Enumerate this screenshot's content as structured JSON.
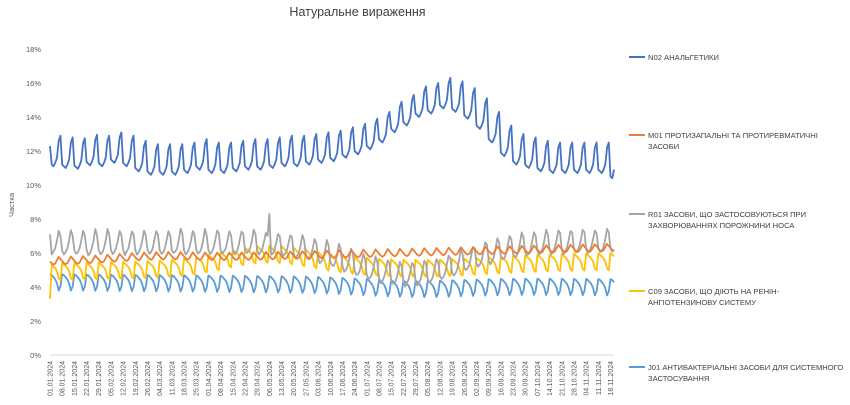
{
  "chart_data": {
    "type": "line",
    "title": "Натуральне вираження",
    "xlabel": "",
    "ylabel": "Частка",
    "ylim": [
      0,
      18
    ],
    "y_ticks": [
      "0%",
      "2%",
      "4%",
      "6%",
      "8%",
      "10%",
      "12%",
      "14%",
      "16%",
      "18%"
    ],
    "x_tick_labels": [
      "01.01.2024",
      "08.01.2024",
      "15.01.2024",
      "22.01.2024",
      "29.01.2024",
      "05.02.2024",
      "12.02.2024",
      "19.02.2024",
      "26.02.2024",
      "04.03.2024",
      "11.03.2024",
      "18.03.2024",
      "25.03.2024",
      "01.04.2024",
      "08.04.2024",
      "15.04.2024",
      "22.04.2024",
      "29.04.2024",
      "06.05.2024",
      "13.05.2024",
      "20.05.2024",
      "27.05.2024",
      "03.06.2024",
      "10.06.2024",
      "17.06.2024",
      "24.06.2024",
      "01.07.2024",
      "08.07.2024",
      "15.07.2024",
      "22.07.2024",
      "29.07.2024",
      "05.08.2024",
      "12.08.2024",
      "19.08.2024",
      "26.08.2024",
      "02.09.2024",
      "09.09.2024",
      "16.09.2024",
      "23.09.2024",
      "30.09.2024",
      "07.10.2024",
      "14.10.2024",
      "21.10.2024",
      "28.10.2024",
      "04.11.2024",
      "11.11.2024",
      "18.11.2024"
    ],
    "x_range": [
      "01.01.2024",
      "20.11.2024"
    ],
    "gridlines": false,
    "legend_position": "right",
    "series": [
      {
        "name": "N02 АНАЛЬГЕТИКИ",
        "color": "#4472c4",
        "weekday_base": [
          11.3,
          11.2,
          11.1,
          11.3,
          11.6,
          12.6,
          12.9
        ],
        "weekly_level": [
          1.0,
          0.9,
          0.85,
          1.05,
          1.0,
          1.2,
          1.0,
          0.7,
          0.5,
          0.5,
          0.5,
          0.6,
          0.8,
          0.6,
          0.6,
          0.7,
          0.8,
          0.8,
          0.9,
          1.0,
          1.0,
          1.1,
          1.2,
          1.3,
          1.5,
          1.7,
          2.0,
          2.4,
          3.0,
          3.4,
          3.9,
          4.1,
          4.4,
          4.2,
          3.8,
          3.2,
          2.4,
          1.6,
          1.1,
          0.9,
          0.7,
          0.6,
          0.6,
          0.6,
          0.6,
          0.6,
          0.2
        ],
        "first_value": 12.3,
        "last_value": 10.9
      },
      {
        "name": "M01 ПРОТИЗАПАЛЬНІ ТА ПРОТИРЕВМАТИЧНІ ЗАСОБИ",
        "color": "#ed7d31",
        "start": 5.5,
        "end": 6.3,
        "weekly_amplitude": 0.25
      },
      {
        "name": "R01 ЗАСОБИ, ЩО ЗАСТОСОВУЮТЬСЯ ПРИ ЗАХВОРЮВАННЯХ ПОРОЖНИНИ НОСА",
        "color": "#a5a5a5",
        "start": 6.5,
        "dip": 4.6,
        "end": 6.6,
        "spike_date": "06.05.2024",
        "spike_value": 8.3
      },
      {
        "name": "C09 ЗАСОБИ, ЩО ДІЮТЬ НА РЕНІН-АНГІОТЕНЗИНОВУ СИСТЕМУ",
        "color": "#ffc000",
        "first_value": 3.3,
        "start": 5.0,
        "peak": 5.8,
        "dip": 4.8,
        "end": 5.6
      },
      {
        "name": "J01 АНТИБАКТЕРІАЛЬНІ ЗАСОБИ ДЛЯ СИСТЕМНОГО ЗАСТОСУВАННЯ",
        "color": "#5b9bd5",
        "start": 4.4,
        "end": 4.1,
        "weekly_amplitude": 0.6
      }
    ]
  }
}
